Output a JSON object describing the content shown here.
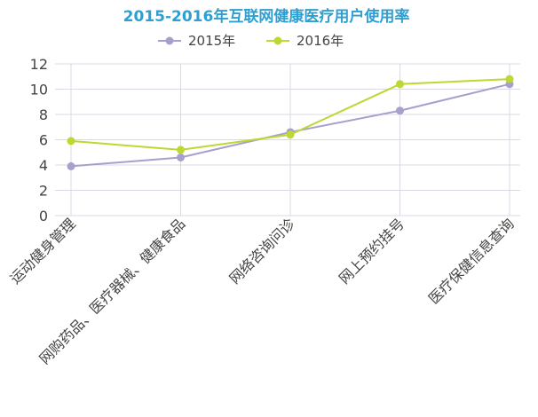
{
  "chart_data": {
    "type": "line",
    "title": "2015-2016年互联网健康医疗用户使用率",
    "xlabel": "",
    "ylabel": "",
    "categories": [
      "运动健身管理",
      "网购药品、医疗器械、健康食品",
      "网络咨询问诊",
      "网上预约挂号",
      "医疗保健信息查询"
    ],
    "series": [
      {
        "name": "2015年",
        "values": [
          3.9,
          4.6,
          6.6,
          8.3,
          10.4
        ],
        "color": "#a6a0cc"
      },
      {
        "name": "2016年",
        "values": [
          5.9,
          5.2,
          6.4,
          10.4,
          10.8
        ],
        "color": "#bcd832"
      }
    ],
    "ylim": [
      0,
      12
    ],
    "yticks": [
      0,
      2,
      4,
      6,
      8,
      10,
      12
    ],
    "grid": true,
    "legend_position": "top-center"
  }
}
